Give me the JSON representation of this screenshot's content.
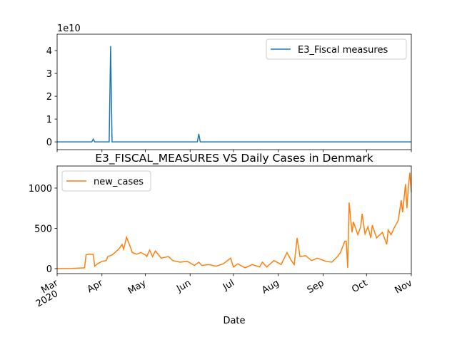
{
  "chart_data": [
    {
      "type": "line",
      "y_offset_label": "1e10",
      "legend": "upper right",
      "x": [
        0,
        24,
        25,
        26,
        36,
        37,
        38,
        97,
        98,
        99,
        245
      ],
      "series": [
        {
          "name": "E3_Fiscal measures",
          "color": "#1f77b4",
          "values": [
            0,
            0,
            0.12,
            0,
            0,
            4.2,
            0,
            0,
            0.35,
            0,
            0
          ]
        }
      ],
      "xlim": [
        0,
        245
      ],
      "xticks": [
        0,
        31,
        61,
        92,
        122,
        153,
        184,
        214,
        245
      ],
      "ylim": [
        -0.34,
        4.72
      ],
      "yticks": [
        0,
        1,
        2,
        3,
        4
      ]
    },
    {
      "type": "line",
      "title": "E3_FISCAL_MEASURES VS Daily Cases in Denmark",
      "x_label": "Date",
      "x_year_label": "2020",
      "legend": "upper left",
      "x": [
        0,
        10,
        19,
        20,
        22,
        25,
        26,
        28,
        31,
        34,
        35,
        38,
        40,
        43,
        45,
        46,
        48,
        50,
        52,
        55,
        58,
        61,
        62,
        64,
        66,
        68,
        72,
        77,
        80,
        85,
        90,
        95,
        98,
        100,
        105,
        110,
        115,
        120,
        122,
        125,
        130,
        135,
        140,
        142,
        145,
        150,
        155,
        159,
        162,
        164,
        166,
        168,
        172,
        176,
        180,
        186,
        190,
        194,
        196,
        199,
        200,
        201,
        202,
        204,
        205,
        208,
        210,
        211,
        213,
        215,
        217,
        218,
        221,
        222,
        225,
        228,
        229,
        231,
        233,
        236,
        238,
        239,
        241,
        242,
        243,
        244,
        245
      ],
      "series": [
        {
          "name": "new_cases",
          "color": "#ff7f0e",
          "values": [
            0,
            2,
            10,
            170,
            180,
            175,
            30,
            60,
            90,
            100,
            150,
            170,
            200,
            250,
            300,
            240,
            390,
            300,
            200,
            180,
            200,
            170,
            150,
            230,
            150,
            220,
            130,
            150,
            100,
            80,
            90,
            40,
            80,
            40,
            50,
            30,
            60,
            130,
            20,
            60,
            10,
            50,
            20,
            80,
            20,
            100,
            50,
            200,
            100,
            50,
            380,
            150,
            160,
            100,
            130,
            90,
            80,
            150,
            200,
            340,
            340,
            10,
            820,
            450,
            580,
            420,
            520,
            680,
            430,
            520,
            380,
            540,
            380,
            400,
            450,
            300,
            480,
            420,
            500,
            600,
            850,
            700,
            1050,
            750,
            1020,
            1190,
            950
          ]
        }
      ],
      "xlim": [
        0,
        245
      ],
      "xticks": [
        {
          "value": 0,
          "label": "Mar"
        },
        {
          "value": 31,
          "label": "Apr"
        },
        {
          "value": 61,
          "label": "May"
        },
        {
          "value": 92,
          "label": "Jun"
        },
        {
          "value": 122,
          "label": "Jul"
        },
        {
          "value": 153,
          "label": "Aug"
        },
        {
          "value": 184,
          "label": "Sep"
        },
        {
          "value": 214,
          "label": "Oct"
        },
        {
          "value": 245,
          "label": "Nov"
        }
      ],
      "ylim": [
        -62,
        1274
      ],
      "yticks": [
        0,
        500,
        1000
      ]
    }
  ]
}
